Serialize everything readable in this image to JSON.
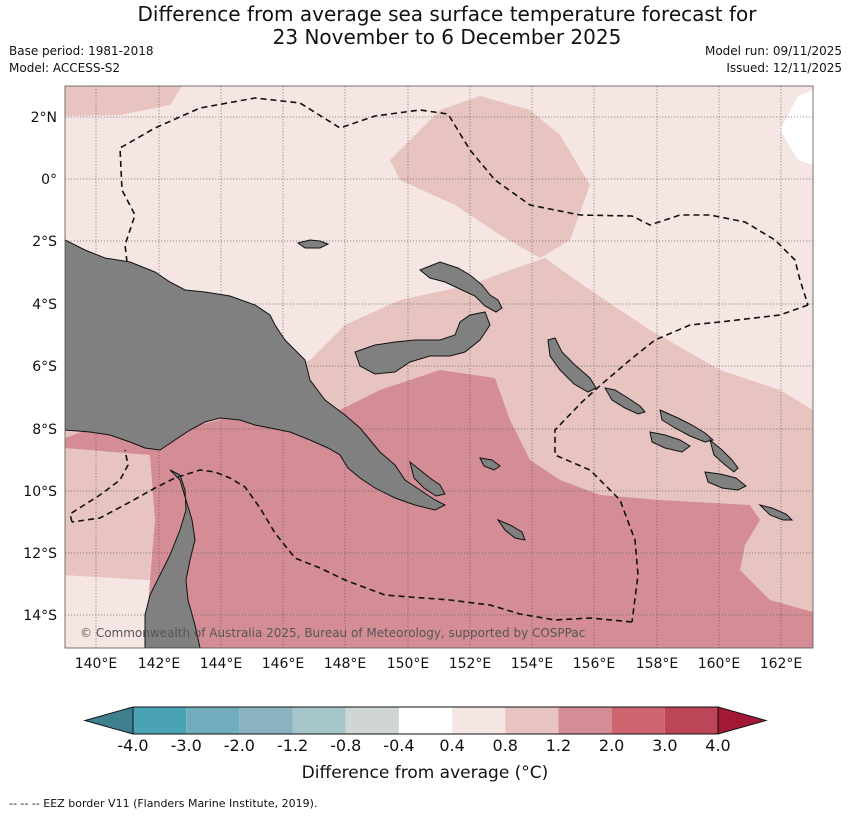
{
  "header": {
    "title_line1": "Difference from average sea surface temperature forecast for",
    "title_line2": "23 November to 6 December 2025",
    "base_period": "Base period: 1981-2018",
    "model": "Model: ACCESS-S2",
    "model_run": "Model run: 09/11/2025",
    "issued": "Issued: 12/11/2025"
  },
  "map": {
    "lat_ticks": [
      "2°N",
      "0°",
      "2°S",
      "4°S",
      "6°S",
      "8°S",
      "10°S",
      "12°S",
      "14°S"
    ],
    "lon_ticks": [
      "140°E",
      "142°E",
      "144°E",
      "146°E",
      "148°E",
      "150°E",
      "152°E",
      "154°E",
      "156°E",
      "158°E",
      "160°E",
      "162°E"
    ],
    "copyright": "© Commonwealth of Australia 2025, Bureau of Meteorology, supported by COSPPac",
    "land_color": "#808080",
    "gridlines": true,
    "eez_border_style": "dashed black"
  },
  "colorbar": {
    "ticks": [
      "-4.0",
      "-3.0",
      "-2.0",
      "-1.2",
      "-0.8",
      "-0.4",
      "0.4",
      "0.8",
      "1.2",
      "2.0",
      "3.0",
      "4.0"
    ],
    "colors": [
      "#3f808e",
      "#4aa3b5",
      "#72adbf",
      "#8ab3c2",
      "#a5c5cb",
      "#d0d6d6",
      "#ffffff",
      "#f5e6e3",
      "#e7c4c0",
      "#d48d95",
      "#cc6570",
      "#bc4557",
      "#a31935"
    ],
    "label": "Difference from average (°C)"
  },
  "footnote": "-- -- -- EEZ border V11 (Flanders Marine Institute, 2019)."
}
